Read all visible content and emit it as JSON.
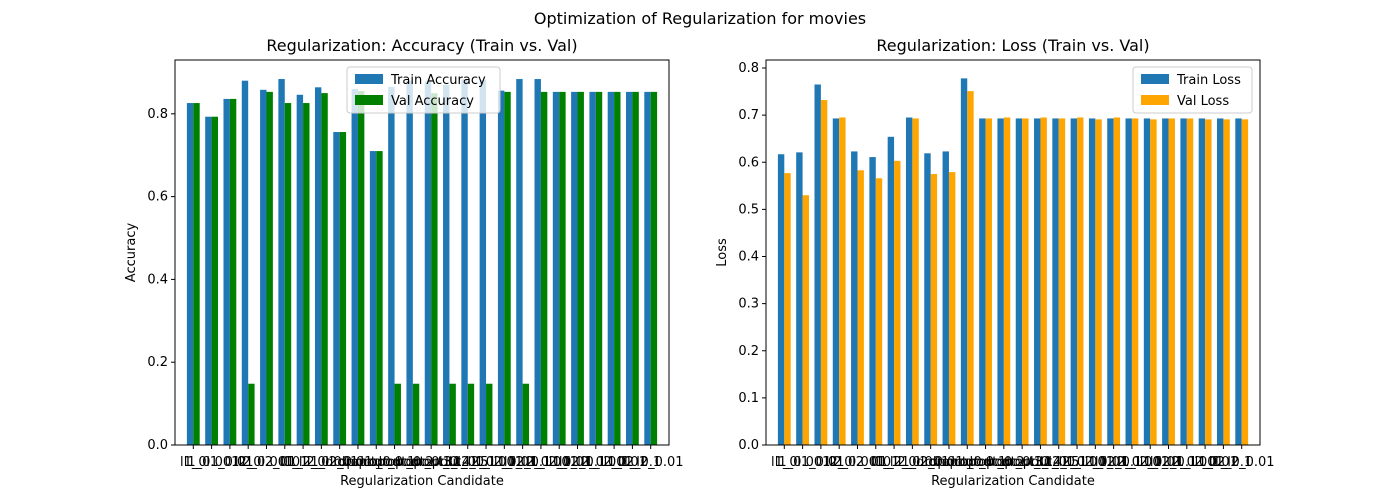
{
  "figure_title": "Optimization of Regularization for movies",
  "chart_data": [
    {
      "type": "bar",
      "title": "Regularization: Accuracy (Train vs. Val)",
      "xlabel": "Regularization Candidate",
      "ylabel": "Accuracy",
      "ylim": [
        0,
        0.93
      ],
      "yticks": [
        "0.0",
        "0.2",
        "0.4",
        "0.6",
        "0.8"
      ],
      "xticks": [
        "l1_0",
        "l1_0.001",
        "l1_0.01",
        "l2_0",
        "l2_0.001",
        "l2_0.01",
        "l1_l2_0",
        "l1_l2_0.001",
        "l1_l2_0.01",
        "dropout_0",
        "dropout_0.1",
        "dropout_0.2",
        "dropout_0.3",
        "dropout_0.4",
        "dropout_0.5",
        "l1_l2_0.1",
        "l1_l2_0.001",
        "l1_l2_0.01",
        "l1_l2_0.1",
        "l1_l2_0.001",
        "l1_l2_0.01",
        "l1_l2_0.1",
        "l1_l2_0.001",
        "l1_l2_0.01",
        "l1_l2_0.1",
        "l1_l2_0.01"
      ],
      "legend_position": "top-center",
      "grid": false,
      "series": [
        {
          "name": "Train Accuracy",
          "color": "#1f77b4",
          "values": [
            0.826,
            0.793,
            0.836,
            0.88,
            0.858,
            0.884,
            0.846,
            0.864,
            0.756,
            0.86,
            0.71,
            0.865,
            0.88,
            0.878,
            0.87,
            0.883,
            0.882,
            0.856,
            0.884,
            0.884,
            0.853,
            0.853,
            0.853,
            0.853,
            0.853,
            0.853
          ]
        },
        {
          "name": "Val Accuracy",
          "color": "#008000",
          "values": [
            0.826,
            0.793,
            0.836,
            0.148,
            0.853,
            0.826,
            0.826,
            0.85,
            0.756,
            0.855,
            0.71,
            0.148,
            0.148,
            0.85,
            0.148,
            0.148,
            0.148,
            0.853,
            0.148,
            0.853,
            0.853,
            0.853,
            0.853,
            0.853,
            0.853,
            0.853
          ]
        }
      ]
    },
    {
      "type": "bar",
      "title": "Regularization: Loss (Train vs. Val)",
      "xlabel": "Regularization Candidate",
      "ylabel": "Loss",
      "ylim": [
        0,
        0.817
      ],
      "yticks": [
        "0.0",
        "0.1",
        "0.2",
        "0.3",
        "0.4",
        "0.5",
        "0.6",
        "0.7",
        "0.8"
      ],
      "xticks": [
        "l1_0",
        "l1_0.001",
        "l1_0.01",
        "l2_0",
        "l2_0.001",
        "l2_0.01",
        "l1_l2_0",
        "l1_l2_0.001",
        "l1_l2_0.01",
        "dropout_0",
        "dropout_0.1",
        "dropout_0.2",
        "dropout_0.3",
        "dropout_0.4",
        "dropout_0.5",
        "l1_l2_0.1",
        "l1_l2_0.001",
        "l1_l2_0.01",
        "l1_l2_0.1",
        "l1_l2_0.001",
        "l1_l2_0.01",
        "l1_l2_0.1",
        "l1_l2_0.001",
        "l1_l2_0.01",
        "l1_l2_0.1",
        "l1_l2_0.01"
      ],
      "legend_position": "top-right",
      "grid": false,
      "series": [
        {
          "name": "Train Loss",
          "color": "#1f77b4",
          "values": [
            0.617,
            0.621,
            0.765,
            0.693,
            0.623,
            0.611,
            0.654,
            0.695,
            0.619,
            0.623,
            0.778,
            0.693,
            0.693,
            0.693,
            0.693,
            0.693,
            0.693,
            0.693,
            0.693,
            0.693,
            0.693,
            0.693,
            0.693,
            0.693,
            0.693,
            0.693
          ]
        },
        {
          "name": "Val Loss",
          "color": "#ffa500",
          "values": [
            0.577,
            0.53,
            0.732,
            0.695,
            0.583,
            0.566,
            0.603,
            0.693,
            0.575,
            0.579,
            0.751,
            0.693,
            0.695,
            0.693,
            0.695,
            0.693,
            0.695,
            0.691,
            0.695,
            0.693,
            0.691,
            0.693,
            0.693,
            0.691,
            0.691,
            0.691
          ]
        }
      ]
    }
  ]
}
